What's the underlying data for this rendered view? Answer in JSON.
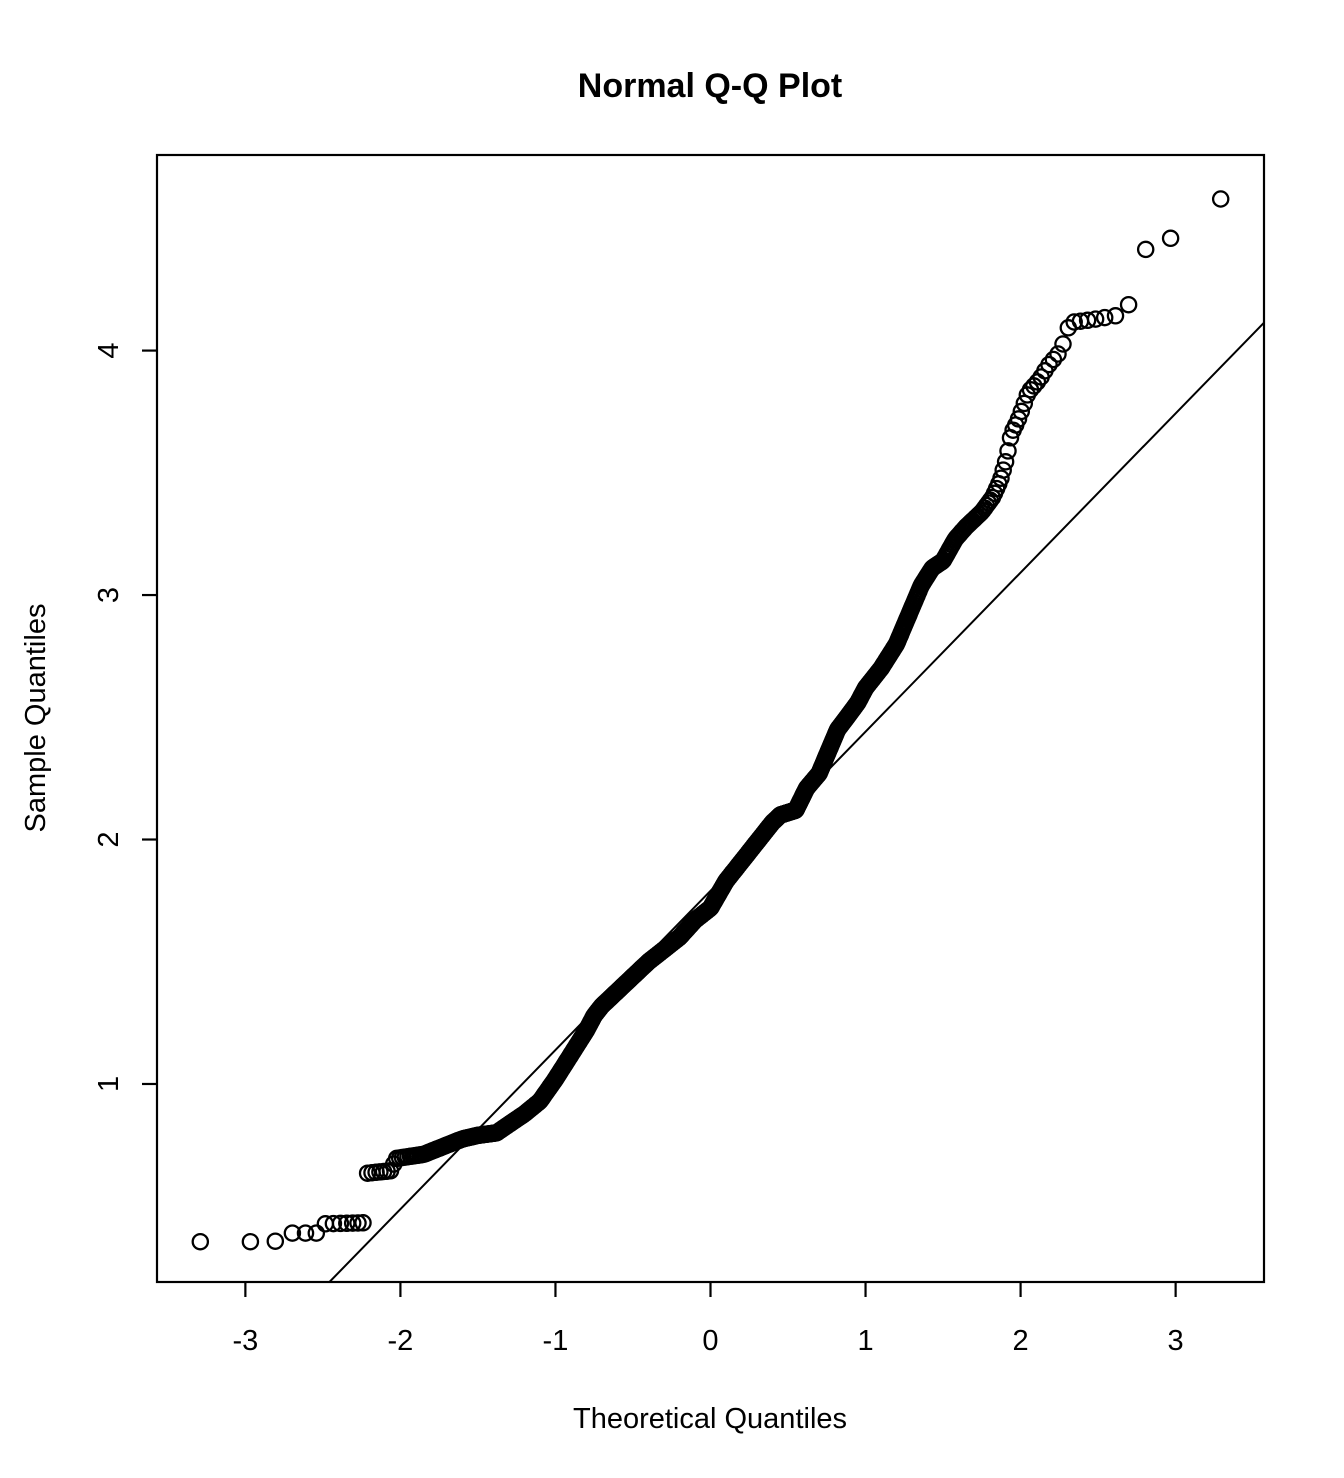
{
  "title": "Normal Q-Q Plot",
  "chart_data": {
    "type": "scatter",
    "subtype": "normal-qq-plot",
    "title": "Normal Q-Q Plot",
    "xlabel": "Theoretical Quantiles",
    "ylabel": "Sample Quantiles",
    "x_ticks": [
      -3,
      -2,
      -1,
      0,
      1,
      2,
      3
    ],
    "y_ticks": [
      1,
      2,
      3,
      4
    ],
    "xlim": [
      -3.57,
      3.57
    ],
    "ylim": [
      0.19,
      4.8
    ],
    "grid": false,
    "legend": "none",
    "n_points": 1000,
    "marker": "open-circle",
    "marker_color": "#000000",
    "background": "#ffffff",
    "reference_line": {
      "slope": 0.651,
      "intercept": 1.79,
      "color": "#000000"
    },
    "quantile_curve": [
      [
        -3.29,
        0.355
      ],
      [
        -2.81,
        0.355
      ],
      [
        -2.76,
        0.39
      ],
      [
        -2.53,
        0.39
      ],
      [
        -2.49,
        0.428
      ],
      [
        -2.24,
        0.432
      ],
      [
        -2.215,
        0.635
      ],
      [
        -2.06,
        0.645
      ],
      [
        -2.03,
        0.695
      ],
      [
        -1.85,
        0.712
      ],
      [
        -1.72,
        0.745
      ],
      [
        -1.6,
        0.775
      ],
      [
        -1.5,
        0.79
      ],
      [
        -1.38,
        0.8
      ],
      [
        -1.3,
        0.835
      ],
      [
        -1.2,
        0.878
      ],
      [
        -1.1,
        0.93
      ],
      [
        -1.0,
        1.02
      ],
      [
        -0.9,
        1.12
      ],
      [
        -0.8,
        1.22
      ],
      [
        -0.75,
        1.28
      ],
      [
        -0.7,
        1.32
      ],
      [
        -0.6,
        1.38
      ],
      [
        -0.5,
        1.44
      ],
      [
        -0.4,
        1.5
      ],
      [
        -0.3,
        1.55
      ],
      [
        -0.2,
        1.6
      ],
      [
        -0.1,
        1.67
      ],
      [
        0.0,
        1.72
      ],
      [
        0.1,
        1.83
      ],
      [
        0.2,
        1.91
      ],
      [
        0.3,
        1.99
      ],
      [
        0.4,
        2.07
      ],
      [
        0.45,
        2.1
      ],
      [
        0.55,
        2.12
      ],
      [
        0.62,
        2.21
      ],
      [
        0.7,
        2.27
      ],
      [
        0.76,
        2.36
      ],
      [
        0.82,
        2.45
      ],
      [
        0.88,
        2.5
      ],
      [
        0.95,
        2.56
      ],
      [
        1.0,
        2.62
      ],
      [
        1.1,
        2.7
      ],
      [
        1.2,
        2.8
      ],
      [
        1.3,
        2.95
      ],
      [
        1.36,
        3.04
      ],
      [
        1.43,
        3.11
      ],
      [
        1.5,
        3.14
      ],
      [
        1.58,
        3.23
      ],
      [
        1.65,
        3.28
      ],
      [
        1.75,
        3.34
      ],
      [
        1.82,
        3.4
      ],
      [
        1.87,
        3.47
      ],
      [
        1.91,
        3.56
      ],
      [
        1.94,
        3.66
      ],
      [
        1.98,
        3.71
      ],
      [
        2.01,
        3.76
      ],
      [
        2.05,
        3.83
      ],
      [
        2.12,
        3.88
      ],
      [
        2.18,
        3.94
      ],
      [
        2.26,
        4.0
      ],
      [
        2.29,
        4.06
      ],
      [
        2.32,
        4.115
      ],
      [
        2.45,
        4.125
      ],
      [
        2.64,
        4.145
      ],
      [
        2.7,
        4.19
      ],
      [
        2.81,
        4.42
      ],
      [
        2.9,
        4.44
      ],
      [
        2.97,
        4.46
      ],
      [
        3.29,
        4.62
      ]
    ]
  }
}
